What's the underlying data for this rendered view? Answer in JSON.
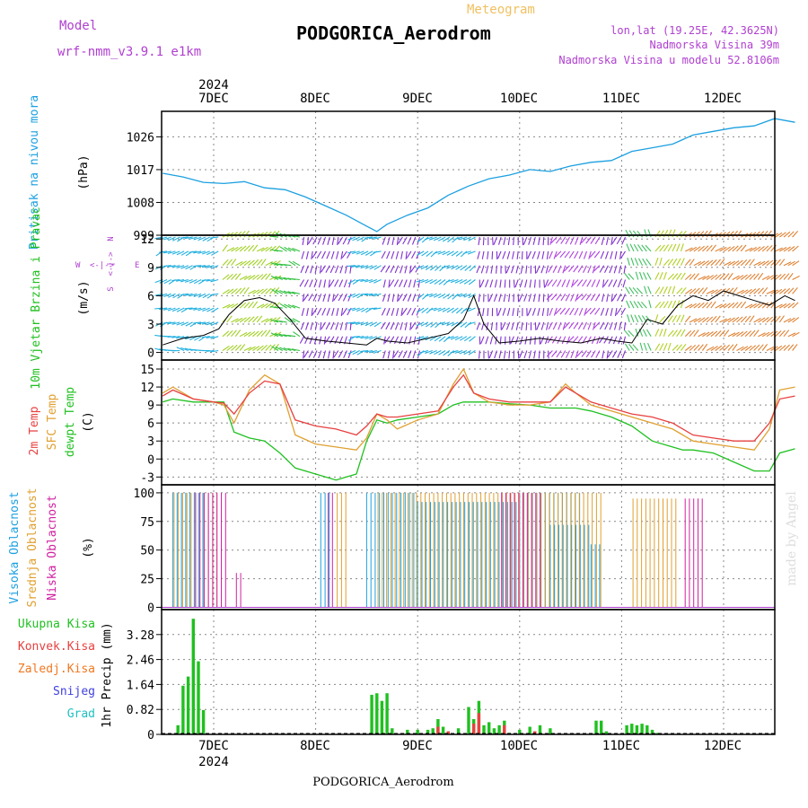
{
  "header": {
    "model_label": "Model",
    "model_name": "wrf-nmm_v3.9.1 e1km",
    "product": "Meteogram",
    "station": "PODGORICA_Aerodrom",
    "coords": "lon,lat (19.25E, 42.3625N)",
    "elevation": "Nadmorska Visina 39m",
    "model_elevation": "Nadmorska Visina u modelu 52.8106m"
  },
  "footer": {
    "station": "PODGORICA_Aerodrom",
    "credit": "made by Angel"
  },
  "colors": {
    "pressure": "#1ca0e0",
    "temp2m": "#e84040",
    "sfc": "#e0a030",
    "dewpt": "#20c020",
    "high_cloud": "#1ca0e0",
    "mid_cloud": "#e0a030",
    "low_cloud": "#d020a0",
    "precip_total": "#20c020",
    "precip_conv": "#e84040",
    "precip_frz": "#f07820",
    "snow": "#4040e0",
    "graupel": "#20c0c0",
    "wind_label": "#20c020",
    "compass": "#b040d0"
  },
  "chart_data": [
    {
      "type": "line",
      "panel": "pressure",
      "ylabel": "Pritisak na nivou mora",
      "unit": "(hPa)",
      "yticks": [
        999,
        1008,
        1017,
        1026
      ],
      "ylim": [
        999,
        1033
      ],
      "series": [
        {
          "name": "Pritisak na nivou mora",
          "x": [
            -0.5,
            -0.3,
            -0.1,
            0.1,
            0.3,
            0.5,
            0.7,
            0.9,
            1.1,
            1.3,
            1.5,
            1.6,
            1.7,
            1.9,
            2.1,
            2.3,
            2.5,
            2.7,
            2.9,
            3.1,
            3.3,
            3.5,
            3.7,
            3.9,
            4.1,
            4.3,
            4.5,
            4.7,
            4.9,
            5.1,
            5.3,
            5.5,
            5.7
          ],
          "values": [
            1016,
            1015,
            1013.5,
            1013.2,
            1013.7,
            1012,
            1011.5,
            1009.5,
            1007,
            1004.5,
            1001.5,
            1000,
            1002,
            1004.5,
            1006.5,
            1010,
            1012.5,
            1014.5,
            1015.5,
            1017,
            1016.5,
            1018,
            1019,
            1019.5,
            1022,
            1023,
            1024,
            1026.5,
            1027.5,
            1028.5,
            1029,
            1031,
            1030
          ]
        }
      ]
    },
    {
      "type": "line",
      "panel": "wind",
      "ylabel": "10m Vjetar Brzina i Pravac",
      "unit": "(m/s)",
      "yticks": [
        0,
        3,
        6,
        9,
        12
      ],
      "ylim": [
        -0.8,
        12.4
      ],
      "compass": {
        "north": "N",
        "east": "E",
        "west": "W",
        "south": "S",
        "arrow_n": "<-|->",
        "arrow_e": "<-|->"
      },
      "series": [
        {
          "name": "10m Vjetar",
          "x": [
            -0.5,
            -0.3,
            -0.1,
            0.05,
            0.15,
            0.3,
            0.45,
            0.6,
            0.75,
            0.9,
            1.1,
            1.3,
            1.5,
            1.6,
            1.7,
            1.9,
            2.1,
            2.3,
            2.45,
            2.55,
            2.65,
            2.8,
            3.0,
            3.2,
            3.4,
            3.6,
            3.8,
            3.95,
            4.1,
            4.25,
            4.4,
            4.55,
            4.7,
            4.85,
            5.0,
            5.15,
            5.3,
            5.45,
            5.6,
            5.7
          ],
          "values": [
            0.8,
            1.5,
            1.8,
            2.5,
            4,
            5.5,
            5.8,
            5.2,
            3.5,
            1.5,
            1.2,
            1,
            0.8,
            1.5,
            1.2,
            1,
            1.5,
            2,
            3.5,
            6,
            3,
            1,
            1.2,
            1.5,
            1.2,
            1,
            1.5,
            1.2,
            1,
            3.5,
            3,
            5,
            6,
            5.5,
            6.5,
            6,
            5.5,
            5,
            6,
            5.5
          ]
        }
      ]
    },
    {
      "type": "line",
      "panel": "temperature",
      "ylabels": [
        "2m Temp",
        "SFC Temp",
        "dewpt Temp"
      ],
      "unit": "(C)",
      "yticks": [
        -3,
        0,
        3,
        6,
        9,
        12,
        15
      ],
      "ylim": [
        -4.3,
        16.5
      ],
      "x": [
        -0.5,
        -0.4,
        -0.2,
        0.0,
        0.1,
        0.2,
        0.35,
        0.5,
        0.65,
        0.8,
        1.0,
        1.2,
        1.4,
        1.5,
        1.6,
        1.7,
        1.8,
        2.0,
        2.2,
        2.35,
        2.45,
        2.55,
        2.7,
        2.9,
        3.1,
        3.3,
        3.45,
        3.55,
        3.7,
        3.9,
        4.1,
        4.3,
        4.5,
        4.6,
        4.7,
        4.9,
        5.1,
        5.3,
        5.45,
        5.55,
        5.7
      ],
      "series": [
        {
          "name": "2m Temp",
          "values": [
            10.5,
            11.5,
            10,
            9.5,
            9.3,
            7.5,
            11,
            13,
            12.5,
            6.5,
            5.5,
            5,
            4,
            5.5,
            7.5,
            7,
            7,
            7.5,
            8,
            12,
            14,
            11,
            10,
            9.5,
            9.5,
            9.5,
            12,
            11,
            9.5,
            8.5,
            7.5,
            7,
            6,
            5,
            4,
            3.5,
            3,
            3,
            6,
            10,
            10.5
          ]
        },
        {
          "name": "SFC Temp",
          "values": [
            11,
            12,
            10,
            9.5,
            9,
            6,
            11.5,
            14,
            12.5,
            4,
            2.5,
            2,
            1.5,
            3.5,
            7.5,
            6.5,
            5,
            6.5,
            7.5,
            12.5,
            15,
            11,
            9.5,
            9,
            9,
            9.5,
            12.5,
            11,
            9,
            8,
            7,
            6,
            5,
            4,
            3,
            2.5,
            2,
            1.5,
            5,
            11.5,
            12
          ]
        },
        {
          "name": "dewpt Temp",
          "values": [
            9.5,
            10,
            9.5,
            9.5,
            9.5,
            4.5,
            3.5,
            3,
            1,
            -1.5,
            -2.5,
            -3.5,
            -2.5,
            3,
            6.5,
            6,
            6.5,
            7,
            7.5,
            9,
            9.5,
            9.5,
            9.5,
            9.2,
            9,
            8.5,
            8.5,
            8.5,
            8,
            7,
            5.5,
            3,
            2,
            1.5,
            1.5,
            1,
            -0.5,
            -2,
            -2,
            1,
            1.7
          ]
        }
      ]
    },
    {
      "type": "bar",
      "panel": "cloud",
      "ylabels": [
        "Visoka Oblacnost",
        "Srednja Oblacnost",
        "Niska Oblacnost"
      ],
      "unit": "(%)",
      "yticks": [
        0,
        25,
        50,
        75,
        100
      ],
      "ylim": [
        -2,
        107
      ],
      "hourly_fill_value": 100,
      "series": [
        {
          "name": "Visoka Oblacnost",
          "ranges": [
            [
              -0.4,
              -0.1,
              100
            ],
            [
              1.05,
              1.15,
              100
            ],
            [
              1.5,
              2.0,
              100
            ],
            [
              2.0,
              3.0,
              92
            ],
            [
              3.0,
              3.6,
              100
            ],
            [
              3.3,
              3.7,
              72
            ],
            [
              3.7,
              3.8,
              55
            ]
          ]
        },
        {
          "name": "Srednja Oblacnost",
          "ranges": [
            [
              -0.4,
              0.05,
              100
            ],
            [
              1.2,
              1.3,
              100
            ],
            [
              1.6,
              3.8,
              100
            ],
            [
              4.1,
              4.55,
              95
            ]
          ]
        },
        {
          "name": "Niska Oblacnost",
          "ranges": [
            [
              -0.2,
              0.1,
              100
            ],
            [
              0.2,
              0.25,
              30
            ],
            [
              1.1,
              1.15,
              100
            ],
            [
              2.8,
              3.2,
              100
            ],
            [
              4.6,
              4.8,
              95
            ]
          ]
        }
      ]
    },
    {
      "type": "bar",
      "panel": "precipitation",
      "ylabel": "1hr Precip (mm)",
      "yticks": [
        0,
        0.82,
        1.64,
        2.46,
        3.28
      ],
      "ylim": [
        0,
        4.1
      ],
      "legend": [
        "Ukupna Kisa",
        "Konvek.Kisa",
        "Zaledj.Kisa",
        "Snijeg",
        "Grad"
      ],
      "series": [
        {
          "name": "Ukupna Kisa",
          "x": [
            -0.35,
            -0.3,
            -0.25,
            -0.2,
            -0.15,
            -0.1,
            1.55,
            1.6,
            1.65,
            1.7,
            1.75,
            1.9,
            2.0,
            2.1,
            2.15,
            2.2,
            2.25,
            2.3,
            2.4,
            2.5,
            2.55,
            2.6,
            2.65,
            2.7,
            2.75,
            2.8,
            2.85,
            2.9,
            3.0,
            3.1,
            3.15,
            3.2,
            3.3,
            3.75,
            3.8,
            3.85,
            4.05,
            4.1,
            4.15,
            4.2,
            4.25,
            4.3,
            4.35
          ],
          "values": [
            0.3,
            1.6,
            1.9,
            3.8,
            2.4,
            0.8,
            1.3,
            1.35,
            1.1,
            1.35,
            0.2,
            0.15,
            0.15,
            0.15,
            0.2,
            0.5,
            0.25,
            0.1,
            0.2,
            0.9,
            0.5,
            1.1,
            0.3,
            0.4,
            0.2,
            0.3,
            0.45,
            0.05,
            0.15,
            0.25,
            0.1,
            0.3,
            0.2,
            0.45,
            0.45,
            0.1,
            0.3,
            0.35,
            0.3,
            0.35,
            0.3,
            0.15,
            0.05
          ]
        },
        {
          "name": "Konvek.Kisa",
          "x": [
            2.2,
            2.3,
            2.55,
            2.6,
            2.85,
            3.15
          ],
          "values": [
            0.25,
            0.1,
            0.35,
            0.7,
            0.3,
            0.1
          ]
        }
      ]
    }
  ],
  "x_axis": {
    "days": [
      "7DEC",
      "8DEC",
      "9DEC",
      "10DEC",
      "11DEC",
      "12DEC"
    ],
    "year": "2024",
    "range": [
      -0.5,
      5.7
    ]
  }
}
